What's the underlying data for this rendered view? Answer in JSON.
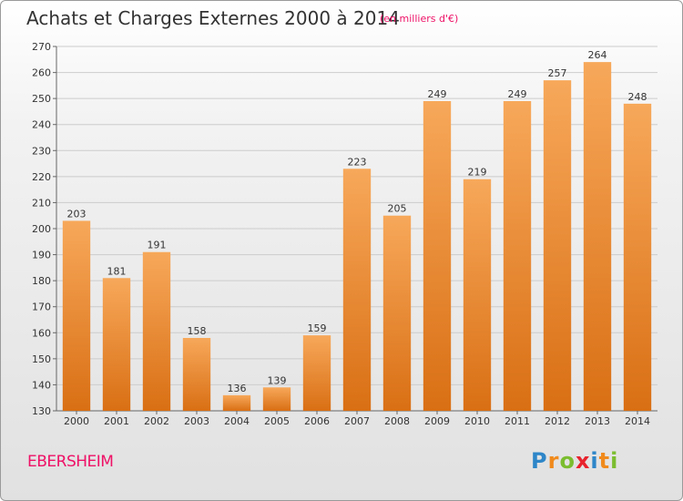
{
  "title": "Achats et Charges Externes 2000 à 2014",
  "subtitle": "(en milliers d'€)",
  "town": "EBERSHEIM",
  "brand": {
    "name": "Proxiti",
    "letters": [
      "P",
      "r",
      "o",
      "x",
      "i",
      "t",
      "i"
    ],
    "letter_colors": [
      "#2e86c8",
      "#f08a1c",
      "#7bbd2f",
      "#e8232e",
      "#2e86c8",
      "#f08a1c",
      "#7bbd2f"
    ]
  },
  "colors": {
    "bar_light": "#f7a85a",
    "bar_dark": "#d96f14",
    "grid": "#cccccc",
    "axis": "#666666",
    "title": "#333333",
    "accent": "#ee1166"
  },
  "chart_data": {
    "type": "bar",
    "title": "Achats et Charges Externes 2000 à 2014",
    "subtitle": "(en milliers d'€)",
    "xlabel": "",
    "ylabel": "",
    "categories": [
      "2000",
      "2001",
      "2002",
      "2003",
      "2004",
      "2005",
      "2006",
      "2007",
      "2008",
      "2009",
      "2010",
      "2011",
      "2012",
      "2013",
      "2014"
    ],
    "values": [
      203,
      181,
      191,
      158,
      136,
      139,
      159,
      223,
      205,
      249,
      219,
      249,
      257,
      264,
      248
    ],
    "ylim": [
      130,
      270
    ],
    "yticks": [
      130,
      140,
      150,
      160,
      170,
      180,
      190,
      200,
      210,
      220,
      230,
      240,
      250,
      260,
      270
    ],
    "grid": true,
    "legend": "none",
    "data_labels": true
  }
}
